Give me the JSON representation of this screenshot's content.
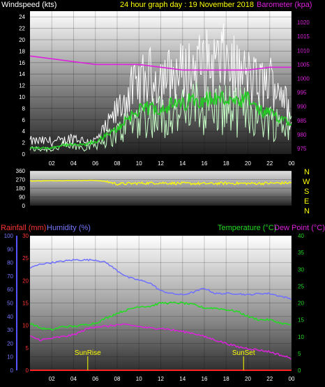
{
  "header": {
    "wind_label": "Windspeed (kts)",
    "title": "24 hour graph day : 19 November 2018",
    "baro_label": "Barometer (kpa)"
  },
  "compass": [
    "N",
    "W",
    "S",
    "E",
    "N"
  ],
  "legend2": {
    "rainfall": "Rainfall (mm)",
    "humidity": "Humidity (%)",
    "temperature": "Temperature (°C)",
    "dewpoint": "Dew Point (°C)"
  },
  "sun": {
    "rise_label": "SunRise",
    "set_label": "SunSet",
    "rise_hour": 5.3,
    "set_hour": 19.6
  },
  "colors": {
    "wind_avg": "#c8ffc8",
    "wind_gust": "#ffffff",
    "wind_mid": "#22cc22",
    "baro": "#dd22dd",
    "direction": "#ffff00",
    "humidity": "#6f6fff",
    "temperature": "#22dd22",
    "dewpoint": "#dd22dd",
    "rainfall": "#ff2222"
  },
  "chart_data": [
    {
      "type": "line",
      "name": "wind",
      "x_ticks": [
        "02",
        "04",
        "06",
        "08",
        "10",
        "12",
        "14",
        "16",
        "18",
        "20",
        "22",
        "00"
      ],
      "y_ticks": [
        0,
        2,
        4,
        6,
        8,
        10,
        12,
        14,
        16,
        18,
        20,
        22,
        24
      ],
      "ylim": [
        0,
        25
      ],
      "y2_ticks": [
        975,
        980,
        985,
        990,
        995,
        1000,
        1005,
        1010,
        1015,
        1020
      ],
      "y2lim": [
        973,
        1024
      ],
      "series": [
        {
          "key": "gust",
          "x": [
            0,
            1,
            2,
            3,
            4,
            5,
            6,
            7,
            8,
            9,
            10,
            11,
            12,
            13,
            14,
            15,
            16,
            17,
            18,
            19,
            20,
            21,
            22,
            23,
            24
          ],
          "y": [
            3,
            3,
            3,
            3,
            4,
            3,
            3,
            6,
            10,
            14,
            16,
            18,
            18,
            18,
            19,
            20,
            21,
            21,
            22,
            19,
            18,
            16,
            17,
            16,
            7
          ]
        },
        {
          "key": "average",
          "x": [
            0,
            1,
            2,
            3,
            4,
            5,
            6,
            7,
            8,
            9,
            10,
            11,
            12,
            13,
            14,
            15,
            16,
            17,
            18,
            19,
            20,
            21,
            22,
            23,
            24
          ],
          "y": [
            1,
            1,
            1,
            1.5,
            1.5,
            1.5,
            2,
            3,
            4,
            6,
            7,
            7.5,
            7.5,
            8,
            8,
            9,
            9,
            9,
            9,
            8,
            9,
            7,
            6.5,
            6,
            5.5
          ]
        },
        {
          "key": "baro",
          "x": [
            0,
            2,
            4,
            6,
            8,
            10,
            12,
            14,
            16,
            18,
            20,
            22,
            24
          ],
          "y": [
            1008,
            1007,
            1006,
            1005,
            1005,
            1005,
            1004,
            1003,
            1003,
            1003,
            1003,
            1004,
            1004
          ]
        }
      ]
    },
    {
      "type": "line",
      "name": "direction",
      "y_ticks": [
        0,
        90,
        180,
        270,
        360
      ],
      "ylim": [
        0,
        360
      ],
      "series": [
        {
          "key": "direction",
          "x": [
            0,
            2,
            4,
            6,
            7,
            8,
            10,
            12,
            14,
            16,
            18,
            20,
            22,
            24
          ],
          "y": [
            255,
            258,
            260,
            262,
            250,
            225,
            232,
            236,
            230,
            228,
            232,
            230,
            232,
            236
          ]
        }
      ]
    },
    {
      "type": "line",
      "name": "temperature",
      "x_ticks": [
        "02",
        "04",
        "06",
        "08",
        "10",
        "12",
        "14",
        "16",
        "18",
        "20",
        "22",
        "00"
      ],
      "y_ticks": [
        0,
        10,
        20,
        30,
        40,
        50,
        60,
        70,
        80,
        90,
        100
      ],
      "ylim": [
        0,
        100
      ],
      "rain_ticks": [
        0,
        5,
        10,
        15,
        20,
        25,
        30
      ],
      "rainlim": [
        0,
        30
      ],
      "y2_ticks": [
        0,
        5,
        10,
        15,
        20,
        25,
        30,
        35,
        40
      ],
      "y2lim": [
        0,
        40
      ],
      "series": [
        {
          "key": "humidity",
          "x": [
            0,
            1,
            2,
            3,
            4,
            5,
            6,
            7,
            8,
            9,
            10,
            11,
            12,
            13,
            14,
            15,
            16,
            17,
            18,
            19,
            20,
            21,
            22,
            23,
            24
          ],
          "y": [
            76,
            79,
            80,
            81,
            82,
            82,
            82,
            80,
            74,
            69,
            67,
            65,
            59,
            57,
            56,
            58,
            61,
            57,
            57,
            57,
            56,
            57,
            57,
            55,
            53
          ]
        },
        {
          "key": "temperature",
          "x": [
            0,
            1,
            2,
            3,
            4,
            5,
            6,
            7,
            8,
            9,
            10,
            11,
            12,
            13,
            14,
            15,
            16,
            17,
            18,
            19,
            20,
            21,
            22,
            23,
            24
          ],
          "y": [
            14,
            12.5,
            12,
            13,
            13,
            13.5,
            14,
            15.5,
            17,
            18,
            19,
            19,
            20,
            20,
            20,
            19.5,
            18.5,
            18.5,
            18,
            17.5,
            16,
            15,
            15,
            14,
            13.5
          ]
        },
        {
          "key": "dewpoint",
          "x": [
            0,
            1,
            2,
            3,
            4,
            5,
            6,
            7,
            8,
            9,
            10,
            11,
            12,
            13,
            14,
            15,
            16,
            17,
            18,
            19,
            20,
            21,
            22,
            23,
            24
          ],
          "y": [
            10,
            9,
            9.5,
            10,
            10.5,
            12,
            13,
            13,
            13.5,
            13.5,
            13,
            12.5,
            12.5,
            12,
            11.5,
            11,
            10,
            9,
            8,
            7,
            6.5,
            6,
            5.5,
            4.5,
            3.5
          ]
        },
        {
          "key": "rainfall",
          "x": [
            0,
            24
          ],
          "y": [
            0,
            0
          ]
        }
      ]
    }
  ]
}
